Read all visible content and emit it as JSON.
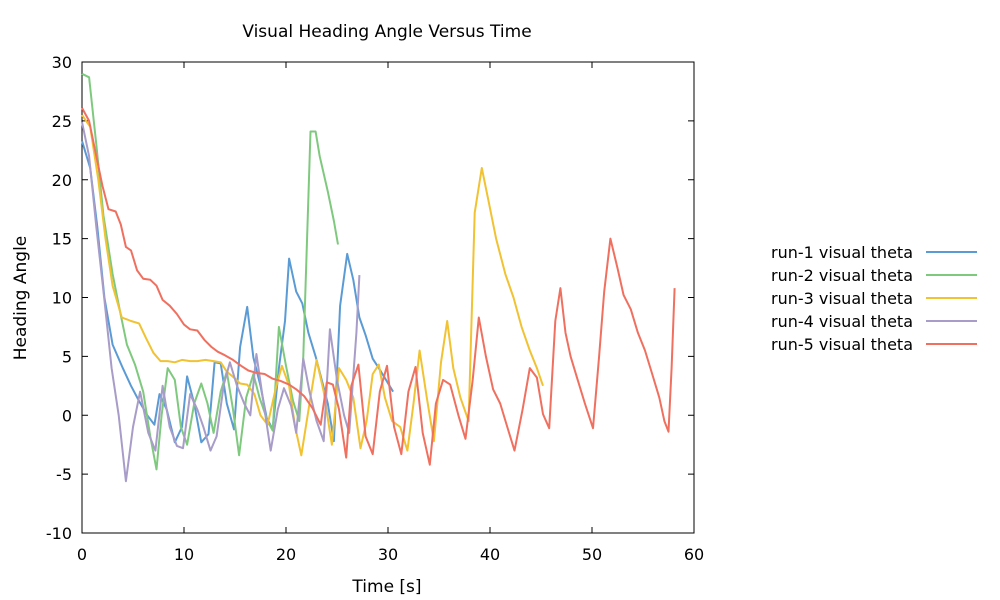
{
  "chart_data": {
    "type": "line",
    "title": "Visual Heading Angle Versus Time",
    "xlabel": "Time [s]",
    "ylabel": "Heading Angle",
    "xlim": [
      0,
      60
    ],
    "ylim": [
      -10,
      30
    ],
    "xticks": [
      0,
      10,
      20,
      30,
      40,
      50,
      60
    ],
    "yticks": [
      -10,
      -5,
      0,
      5,
      10,
      15,
      20,
      25,
      30
    ],
    "grid": false,
    "legend_position": "right",
    "series": [
      {
        "name": "run-1 visual theta",
        "color": "#5b9bd5",
        "points": [
          [
            0,
            23.3
          ],
          [
            0.8,
            21
          ],
          [
            1.5,
            16
          ],
          [
            2.2,
            10
          ],
          [
            3,
            6
          ],
          [
            4,
            4
          ],
          [
            4.8,
            2.5
          ],
          [
            5.6,
            1.2
          ],
          [
            6.4,
            0
          ],
          [
            7.1,
            -0.8
          ],
          [
            7.6,
            1.8
          ],
          [
            8.3,
            0.5
          ],
          [
            9.1,
            -2.3
          ],
          [
            9.8,
            -1
          ],
          [
            10.3,
            3.3
          ],
          [
            11,
            1
          ],
          [
            11.7,
            -2.3
          ],
          [
            12.4,
            -1.6
          ],
          [
            13,
            4.5
          ],
          [
            13.6,
            4.4
          ],
          [
            14.2,
            1
          ],
          [
            14.9,
            -1.2
          ],
          [
            15.5,
            5.8
          ],
          [
            16.2,
            9.2
          ],
          [
            16.8,
            4.9
          ],
          [
            17.5,
            2.5
          ],
          [
            18.1,
            -0.2
          ],
          [
            18.7,
            -1.2
          ],
          [
            19.3,
            4
          ],
          [
            19.9,
            8
          ],
          [
            20.3,
            13.3
          ],
          [
            21,
            10.5
          ],
          [
            21.6,
            9.5
          ],
          [
            22.2,
            7
          ],
          [
            22.9,
            5
          ],
          [
            23.5,
            3
          ],
          [
            24.1,
            1
          ],
          [
            24.7,
            -2.2
          ],
          [
            25.3,
            9.3
          ],
          [
            26,
            13.7
          ],
          [
            26.6,
            11.5
          ],
          [
            27.2,
            8.3
          ],
          [
            27.8,
            6.8
          ],
          [
            28.5,
            4.8
          ],
          [
            29.1,
            4
          ],
          [
            29.8,
            3
          ],
          [
            30.5,
            2
          ]
        ]
      },
      {
        "name": "run-2 visual theta",
        "color": "#7fc97f",
        "points": [
          [
            0,
            29
          ],
          [
            0.7,
            28.7
          ],
          [
            1.4,
            23
          ],
          [
            2.1,
            17
          ],
          [
            3,
            12
          ],
          [
            3.8,
            8.5
          ],
          [
            4.4,
            6
          ],
          [
            5.2,
            4.3
          ],
          [
            6,
            2
          ],
          [
            6.7,
            -1.8
          ],
          [
            7.3,
            -4.6
          ],
          [
            7.8,
            0
          ],
          [
            8.4,
            4
          ],
          [
            9.1,
            3
          ],
          [
            9.7,
            -1
          ],
          [
            10.3,
            -2.5
          ],
          [
            11,
            1
          ],
          [
            11.7,
            2.7
          ],
          [
            12.3,
            1
          ],
          [
            12.9,
            -1.5
          ],
          [
            13.6,
            2
          ],
          [
            14.2,
            3.7
          ],
          [
            14.8,
            0.5
          ],
          [
            15.4,
            -3.4
          ],
          [
            16.1,
            1.5
          ],
          [
            16.8,
            3.5
          ],
          [
            17.4,
            1.5
          ],
          [
            18.2,
            -0.5
          ],
          [
            18.7,
            -1.3
          ],
          [
            19.3,
            7.5
          ],
          [
            20,
            4.2
          ],
          [
            20.7,
            1.2
          ],
          [
            21.3,
            -0.5
          ],
          [
            21.7,
            5
          ],
          [
            22.4,
            24.1
          ],
          [
            22.9,
            24.1
          ],
          [
            23.3,
            22
          ],
          [
            24.1,
            19
          ],
          [
            24.7,
            16.5
          ],
          [
            25.1,
            14.5
          ]
        ]
      },
      {
        "name": "run-3 visual theta",
        "color": "#f1c232",
        "points": [
          [
            0,
            25.5
          ],
          [
            0.8,
            24.5
          ],
          [
            1.6,
            20
          ],
          [
            2.3,
            15
          ],
          [
            3,
            11
          ],
          [
            3.9,
            8.3
          ],
          [
            4.8,
            8
          ],
          [
            5.6,
            7.8
          ],
          [
            6.3,
            6.5
          ],
          [
            7,
            5.3
          ],
          [
            7.7,
            4.6
          ],
          [
            8.4,
            4.6
          ],
          [
            9.1,
            4.5
          ],
          [
            9.8,
            4.7
          ],
          [
            10.6,
            4.6
          ],
          [
            11.3,
            4.6
          ],
          [
            12.1,
            4.7
          ],
          [
            12.9,
            4.6
          ],
          [
            13.6,
            4.5
          ],
          [
            14.2,
            3.7
          ],
          [
            14.9,
            3.2
          ],
          [
            15.5,
            2.7
          ],
          [
            16.2,
            2.6
          ],
          [
            16.9,
            1.8
          ],
          [
            17.5,
            0
          ],
          [
            18.2,
            -0.8
          ],
          [
            19,
            2.3
          ],
          [
            19.6,
            4.2
          ],
          [
            20.3,
            2.5
          ],
          [
            20.9,
            -1
          ],
          [
            21.5,
            -3.4
          ],
          [
            22.3,
            1
          ],
          [
            23,
            4.7
          ],
          [
            23.7,
            2
          ],
          [
            24.5,
            -2.5
          ],
          [
            25.2,
            4
          ],
          [
            25.9,
            3
          ],
          [
            26.6,
            1.5
          ],
          [
            27.3,
            -2.8
          ],
          [
            27.9,
            -0.5
          ],
          [
            28.5,
            3.5
          ],
          [
            29.1,
            4.3
          ],
          [
            29.7,
            1.5
          ],
          [
            30.4,
            -0.5
          ],
          [
            31.2,
            -1
          ],
          [
            31.9,
            -3
          ],
          [
            32.5,
            1
          ],
          [
            33.1,
            5.5
          ],
          [
            33.8,
            1.5
          ],
          [
            34.5,
            -2.2
          ],
          [
            35.2,
            4.5
          ],
          [
            35.8,
            8
          ],
          [
            36.4,
            4
          ],
          [
            37.1,
            1.5
          ],
          [
            37.9,
            -0.5
          ],
          [
            38.5,
            17.2
          ],
          [
            39.2,
            21
          ],
          [
            39.9,
            18
          ],
          [
            40.6,
            15
          ],
          [
            41.5,
            12
          ],
          [
            42.3,
            10
          ],
          [
            43.1,
            7.5
          ],
          [
            43.9,
            5.5
          ],
          [
            44.6,
            4
          ],
          [
            45.2,
            2.5
          ]
        ]
      },
      {
        "name": "run-4 visual theta",
        "color": "#a89cc8",
        "points": [
          [
            0,
            24.9
          ],
          [
            0.7,
            22
          ],
          [
            1.4,
            16
          ],
          [
            2.2,
            9.8
          ],
          [
            2.9,
            4
          ],
          [
            3.6,
            0
          ],
          [
            4.3,
            -5.6
          ],
          [
            5,
            -1
          ],
          [
            5.7,
            2
          ],
          [
            6.5,
            -1.5
          ],
          [
            7.2,
            -3
          ],
          [
            7.9,
            2.5
          ],
          [
            8.6,
            -1
          ],
          [
            9.3,
            -2.6
          ],
          [
            9.9,
            -2.8
          ],
          [
            10.6,
            1.8
          ],
          [
            11.3,
            0.5
          ],
          [
            11.9,
            -1
          ],
          [
            12.6,
            -3
          ],
          [
            13.2,
            -1.8
          ],
          [
            13.9,
            2.6
          ],
          [
            14.5,
            4.5
          ],
          [
            15.2,
            2.5
          ],
          [
            15.9,
            1
          ],
          [
            16.5,
            0
          ],
          [
            17.1,
            5.2
          ],
          [
            17.8,
            1
          ],
          [
            18.5,
            -3
          ],
          [
            19.2,
            0.5
          ],
          [
            19.8,
            2.3
          ],
          [
            20.5,
            0.8
          ],
          [
            21,
            -1.5
          ],
          [
            21.7,
            4.8
          ],
          [
            22.3,
            2
          ],
          [
            23,
            -0.5
          ],
          [
            23.7,
            -2.2
          ],
          [
            24.3,
            7.3
          ],
          [
            25,
            3
          ],
          [
            25.7,
            0
          ],
          [
            26.2,
            -1.5
          ],
          [
            26.9,
            7
          ],
          [
            27.2,
            11.9
          ]
        ]
      },
      {
        "name": "run-5 visual theta",
        "color": "#f07060",
        "points": [
          [
            0,
            26.1
          ],
          [
            0.7,
            25
          ],
          [
            1.4,
            22
          ],
          [
            2,
            19.5
          ],
          [
            2.6,
            17.5
          ],
          [
            3.3,
            17.3
          ],
          [
            3.8,
            16.2
          ],
          [
            4.3,
            14.3
          ],
          [
            4.8,
            14
          ],
          [
            5.4,
            12.3
          ],
          [
            6,
            11.6
          ],
          [
            6.7,
            11.5
          ],
          [
            7.3,
            11
          ],
          [
            7.9,
            9.8
          ],
          [
            8.6,
            9.3
          ],
          [
            9.3,
            8.6
          ],
          [
            10,
            7.7
          ],
          [
            10.6,
            7.3
          ],
          [
            11.3,
            7.2
          ],
          [
            12,
            6.4
          ],
          [
            12.7,
            5.8
          ],
          [
            13.3,
            5.4
          ],
          [
            14,
            5.1
          ],
          [
            14.8,
            4.7
          ],
          [
            15.6,
            4.2
          ],
          [
            16.3,
            3.8
          ],
          [
            17.1,
            3.6
          ],
          [
            17.9,
            3.5
          ],
          [
            18.7,
            3.1
          ],
          [
            19.5,
            2.9
          ],
          [
            20.3,
            2.6
          ],
          [
            21,
            2.2
          ],
          [
            21.8,
            1.6
          ],
          [
            22.6,
            0.6
          ],
          [
            23.4,
            -0.8
          ],
          [
            24,
            2.8
          ],
          [
            24.6,
            2.6
          ],
          [
            25.2,
            0.5
          ],
          [
            25.9,
            -3.6
          ],
          [
            26.4,
            2.5
          ],
          [
            27.1,
            4.3
          ],
          [
            27.8,
            -1.8
          ],
          [
            28.5,
            -3.3
          ],
          [
            29.2,
            2
          ],
          [
            29.9,
            4.2
          ],
          [
            30.6,
            -1
          ],
          [
            31.3,
            -3.3
          ],
          [
            32,
            2
          ],
          [
            32.7,
            4.1
          ],
          [
            33.4,
            -1.5
          ],
          [
            34.1,
            -4.2
          ],
          [
            34.7,
            1
          ],
          [
            35.4,
            3
          ],
          [
            36.1,
            2.6
          ],
          [
            36.9,
            0
          ],
          [
            37.6,
            -2
          ],
          [
            38.3,
            3
          ],
          [
            38.9,
            8.3
          ],
          [
            39.6,
            5
          ],
          [
            40.3,
            2.2
          ],
          [
            41,
            1
          ],
          [
            41.7,
            -1
          ],
          [
            42.4,
            -3
          ],
          [
            43.2,
            0.5
          ],
          [
            43.9,
            4
          ],
          [
            44.6,
            3.2
          ],
          [
            45.2,
            0.1
          ],
          [
            45.8,
            -1.1
          ],
          [
            46.4,
            8
          ],
          [
            46.9,
            10.8
          ],
          [
            47.4,
            7
          ],
          [
            47.9,
            5
          ],
          [
            48.6,
            3
          ],
          [
            49.3,
            1
          ],
          [
            50.1,
            -1.1
          ],
          [
            50.7,
            5
          ],
          [
            51.2,
            10.5
          ],
          [
            51.8,
            15
          ],
          [
            52.5,
            12.5
          ],
          [
            53.1,
            10.2
          ],
          [
            53.8,
            9
          ],
          [
            54.5,
            7
          ],
          [
            55.2,
            5.5
          ],
          [
            55.9,
            3.5
          ],
          [
            56.6,
            1.5
          ],
          [
            57.1,
            -0.5
          ],
          [
            57.5,
            -1.4
          ],
          [
            57.8,
            4
          ],
          [
            58.1,
            10.8
          ]
        ]
      }
    ]
  }
}
